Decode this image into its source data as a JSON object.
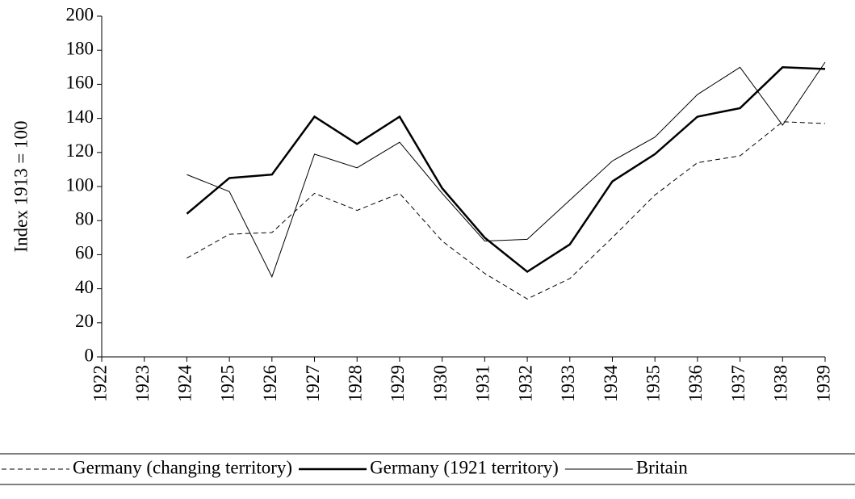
{
  "chart_data": {
    "type": "line",
    "y_label": "Index 1913 = 100",
    "categories": [
      "1922",
      "1923",
      "1924",
      "1925",
      "1926",
      "1927",
      "1928",
      "1929",
      "1930",
      "1931",
      "1932",
      "1933",
      "1934",
      "1935",
      "1936",
      "1937",
      "1938",
      "1939"
    ],
    "series": [
      {
        "name": "Germany (changing territory)",
        "color": "#000000",
        "style": "dashed",
        "values": [
          null,
          null,
          58,
          72,
          73,
          96,
          86,
          96,
          68,
          49,
          34,
          46,
          70,
          95,
          114,
          118,
          138,
          137
        ]
      },
      {
        "name": "Germany (1921 territory)",
        "color": "#000000",
        "style": "thick",
        "values": [
          null,
          null,
          84,
          105,
          107,
          141,
          125,
          141,
          99,
          70,
          50,
          66,
          103,
          119,
          141,
          146,
          170,
          169
        ]
      },
      {
        "name": "Britain",
        "color": "#000000",
        "style": "thin",
        "values": [
          null,
          null,
          107,
          97,
          47,
          119,
          111,
          126,
          96,
          68,
          69,
          92,
          115,
          129,
          154,
          170,
          136,
          173
        ]
      }
    ],
    "ylim": [
      0,
      200
    ],
    "yticks": [
      0,
      20,
      40,
      60,
      80,
      100,
      120,
      140,
      160,
      180,
      200
    ],
    "grid": false,
    "legend": "bottom"
  }
}
